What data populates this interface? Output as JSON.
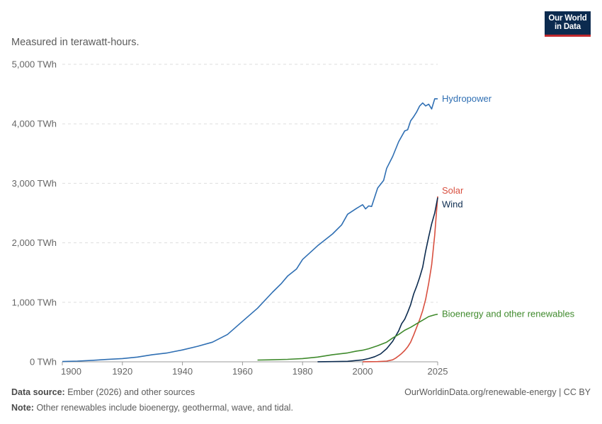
{
  "logo": {
    "line1": "Our World",
    "line2": "in Data"
  },
  "subtitle": "Measured in terawatt-hours.",
  "footer": {
    "source_label": "Data source:",
    "source_text": "Ember (2026) and other sources",
    "url": "OurWorldinData.org/renewable-energy | CC BY",
    "note_label": "Note:",
    "note_text": "Other renewables include bioenergy, geothermal, wave, and tidal."
  },
  "chart_data": {
    "type": "line",
    "title": "",
    "xlabel": "",
    "ylabel": "",
    "xlim": [
      1900,
      2025
    ],
    "ylim": [
      0,
      5000
    ],
    "grid": true,
    "y_ticks": [
      {
        "value": 0,
        "label": "0 TWh"
      },
      {
        "value": 1000,
        "label": "1,000 TWh"
      },
      {
        "value": 2000,
        "label": "2,000 TWh"
      },
      {
        "value": 3000,
        "label": "3,000 TWh"
      },
      {
        "value": 4000,
        "label": "4,000 TWh"
      },
      {
        "value": 5000,
        "label": "5,000 TWh"
      }
    ],
    "x_ticks": [
      {
        "value": 1900,
        "label": "1900"
      },
      {
        "value": 1920,
        "label": "1920"
      },
      {
        "value": 1940,
        "label": "1940"
      },
      {
        "value": 1960,
        "label": "1960"
      },
      {
        "value": 1980,
        "label": "1980"
      },
      {
        "value": 2000,
        "label": "2000"
      },
      {
        "value": 2025,
        "label": "2025"
      }
    ],
    "series": [
      {
        "name": "Hydropower",
        "color": "#2f6fb3",
        "points": [
          [
            1900,
            5
          ],
          [
            1905,
            12
          ],
          [
            1910,
            25
          ],
          [
            1915,
            40
          ],
          [
            1920,
            55
          ],
          [
            1925,
            80
          ],
          [
            1930,
            120
          ],
          [
            1935,
            150
          ],
          [
            1940,
            200
          ],
          [
            1945,
            260
          ],
          [
            1950,
            330
          ],
          [
            1955,
            460
          ],
          [
            1960,
            680
          ],
          [
            1965,
            900
          ],
          [
            1970,
            1170
          ],
          [
            1973,
            1320
          ],
          [
            1975,
            1440
          ],
          [
            1978,
            1560
          ],
          [
            1980,
            1720
          ],
          [
            1985,
            1950
          ],
          [
            1990,
            2150
          ],
          [
            1993,
            2300
          ],
          [
            1995,
            2480
          ],
          [
            1998,
            2580
          ],
          [
            2000,
            2640
          ],
          [
            2001,
            2570
          ],
          [
            2002,
            2620
          ],
          [
            2003,
            2610
          ],
          [
            2005,
            2920
          ],
          [
            2007,
            3050
          ],
          [
            2008,
            3250
          ],
          [
            2010,
            3450
          ],
          [
            2012,
            3700
          ],
          [
            2014,
            3880
          ],
          [
            2015,
            3900
          ],
          [
            2016,
            4050
          ],
          [
            2017,
            4120
          ],
          [
            2018,
            4200
          ],
          [
            2019,
            4300
          ],
          [
            2020,
            4350
          ],
          [
            2021,
            4300
          ],
          [
            2022,
            4330
          ],
          [
            2023,
            4250
          ],
          [
            2024,
            4420
          ],
          [
            2025,
            4420
          ]
        ]
      },
      {
        "name": "Solar",
        "color": "#d84f3f",
        "points": [
          [
            2000,
            1
          ],
          [
            2005,
            4
          ],
          [
            2008,
            12
          ],
          [
            2010,
            33
          ],
          [
            2011,
            62
          ],
          [
            2012,
            100
          ],
          [
            2013,
            140
          ],
          [
            2014,
            190
          ],
          [
            2015,
            250
          ],
          [
            2016,
            330
          ],
          [
            2017,
            450
          ],
          [
            2018,
            580
          ],
          [
            2019,
            710
          ],
          [
            2020,
            860
          ],
          [
            2021,
            1050
          ],
          [
            2022,
            1320
          ],
          [
            2023,
            1630
          ],
          [
            2024,
            2130
          ],
          [
            2025,
            2780
          ]
        ]
      },
      {
        "name": "Wind",
        "color": "#0c2b4f",
        "points": [
          [
            1985,
            1
          ],
          [
            1990,
            4
          ],
          [
            1995,
            8
          ],
          [
            2000,
            32
          ],
          [
            2002,
            55
          ],
          [
            2004,
            85
          ],
          [
            2006,
            133
          ],
          [
            2008,
            220
          ],
          [
            2010,
            345
          ],
          [
            2012,
            520
          ],
          [
            2013,
            640
          ],
          [
            2014,
            715
          ],
          [
            2015,
            830
          ],
          [
            2016,
            960
          ],
          [
            2017,
            1140
          ],
          [
            2018,
            1270
          ],
          [
            2019,
            1420
          ],
          [
            2020,
            1590
          ],
          [
            2021,
            1860
          ],
          [
            2022,
            2100
          ],
          [
            2023,
            2320
          ],
          [
            2024,
            2500
          ],
          [
            2025,
            2760
          ]
        ]
      },
      {
        "name": "Bioenergy and other renewables",
        "color": "#3f8a2c",
        "points": [
          [
            1965,
            30
          ],
          [
            1970,
            35
          ],
          [
            1975,
            42
          ],
          [
            1980,
            55
          ],
          [
            1985,
            80
          ],
          [
            1990,
            120
          ],
          [
            1995,
            150
          ],
          [
            1998,
            180
          ],
          [
            2000,
            195
          ],
          [
            2002,
            220
          ],
          [
            2005,
            270
          ],
          [
            2008,
            330
          ],
          [
            2010,
            400
          ],
          [
            2012,
            460
          ],
          [
            2014,
            530
          ],
          [
            2016,
            580
          ],
          [
            2018,
            640
          ],
          [
            2020,
            700
          ],
          [
            2022,
            760
          ],
          [
            2024,
            790
          ],
          [
            2025,
            800
          ]
        ]
      }
    ]
  }
}
